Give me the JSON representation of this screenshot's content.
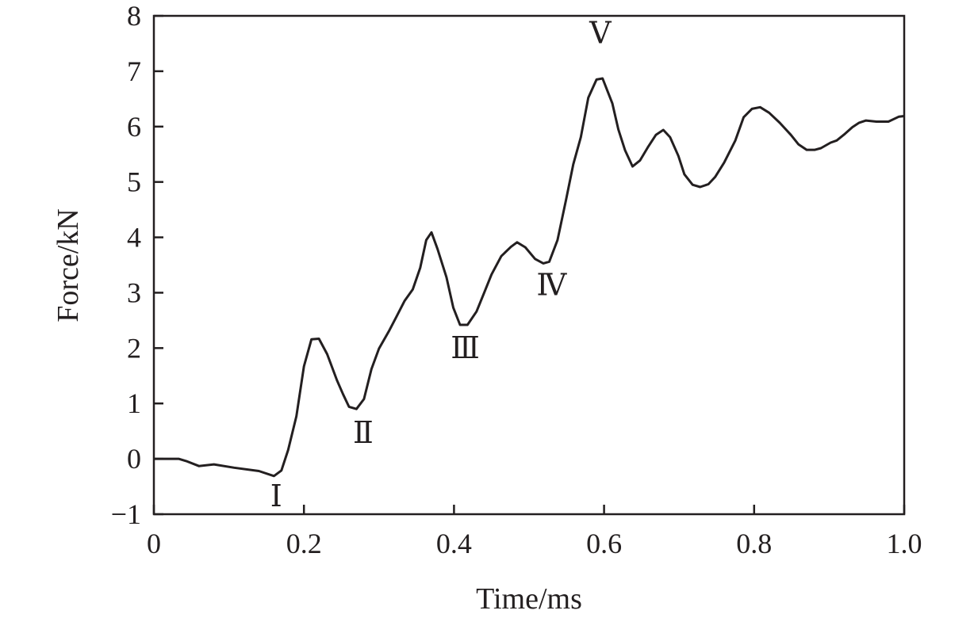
{
  "chart_data": {
    "type": "line",
    "title": "",
    "xlabel": "Time/ms",
    "ylabel": "Force/kN",
    "xlim": [
      0,
      1.0
    ],
    "ylim": [
      -1,
      8
    ],
    "x_ticks": [
      "0",
      "0.2",
      "0.4",
      "0.6",
      "0.8",
      "1.0"
    ],
    "x_tick_values": [
      0,
      0.2,
      0.4,
      0.6,
      0.8,
      1.0
    ],
    "y_ticks": [
      "−1",
      "0",
      "1",
      "2",
      "3",
      "4",
      "5",
      "6",
      "7",
      "8"
    ],
    "y_tick_values": [
      -1,
      0,
      1,
      2,
      3,
      4,
      5,
      6,
      7,
      8
    ],
    "grid": false,
    "line_color": "#231f20",
    "series": [
      {
        "x": [
          0,
          0.033,
          0.043,
          0.06,
          0.08,
          0.107,
          0.14,
          0.16,
          0.17,
          0.179,
          0.19,
          0.2,
          0.21,
          0.22,
          0.231,
          0.244,
          0.252,
          0.26,
          0.27,
          0.28,
          0.29,
          0.3,
          0.313,
          0.323,
          0.334,
          0.345,
          0.355,
          0.363,
          0.37,
          0.378,
          0.39,
          0.399,
          0.408,
          0.418,
          0.43,
          0.44,
          0.45,
          0.463,
          0.476,
          0.484,
          0.495,
          0.508,
          0.519,
          0.527,
          0.538,
          0.549,
          0.559,
          0.569,
          0.579,
          0.59,
          0.598,
          0.611,
          0.619,
          0.628,
          0.638,
          0.648,
          0.659,
          0.669,
          0.679,
          0.688,
          0.699,
          0.707,
          0.718,
          0.728,
          0.739,
          0.748,
          0.76,
          0.775,
          0.786,
          0.797,
          0.808,
          0.82,
          0.834,
          0.849,
          0.859,
          0.87,
          0.881,
          0.889,
          0.902,
          0.91,
          0.921,
          0.931,
          0.94,
          0.949,
          0.963,
          0.979,
          0.993,
          1.0
        ],
        "y": [
          0,
          0,
          -0.04,
          -0.13,
          -0.1,
          -0.16,
          -0.22,
          -0.31,
          -0.21,
          0.16,
          0.77,
          1.67,
          2.16,
          2.17,
          1.89,
          1.42,
          1.17,
          0.94,
          0.9,
          1.08,
          1.62,
          1.99,
          2.3,
          2.56,
          2.85,
          3.06,
          3.45,
          3.95,
          4.09,
          3.79,
          3.28,
          2.73,
          2.42,
          2.42,
          2.66,
          2.99,
          3.33,
          3.66,
          3.83,
          3.91,
          3.82,
          3.61,
          3.53,
          3.56,
          3.95,
          4.66,
          5.32,
          5.81,
          6.52,
          6.85,
          6.87,
          6.42,
          5.95,
          5.57,
          5.28,
          5.39,
          5.64,
          5.85,
          5.94,
          5.81,
          5.47,
          5.14,
          4.95,
          4.91,
          4.96,
          5.09,
          5.35,
          5.75,
          6.17,
          6.32,
          6.35,
          6.25,
          6.07,
          5.85,
          5.68,
          5.58,
          5.58,
          5.61,
          5.71,
          5.75,
          5.87,
          5.99,
          6.07,
          6.11,
          6.09,
          6.09,
          6.18,
          6.19
        ]
      }
    ],
    "annotations": [
      {
        "text": "Ⅰ",
        "x": 0.163,
        "y": -0.66
      },
      {
        "text": "Ⅱ",
        "x": 0.279,
        "y": 0.49
      },
      {
        "text": "Ⅲ",
        "x": 0.415,
        "y": 2.02
      },
      {
        "text": "Ⅳ",
        "x": 0.53,
        "y": 3.16
      },
      {
        "text": "Ⅴ",
        "x": 0.595,
        "y": 7.71
      }
    ]
  }
}
